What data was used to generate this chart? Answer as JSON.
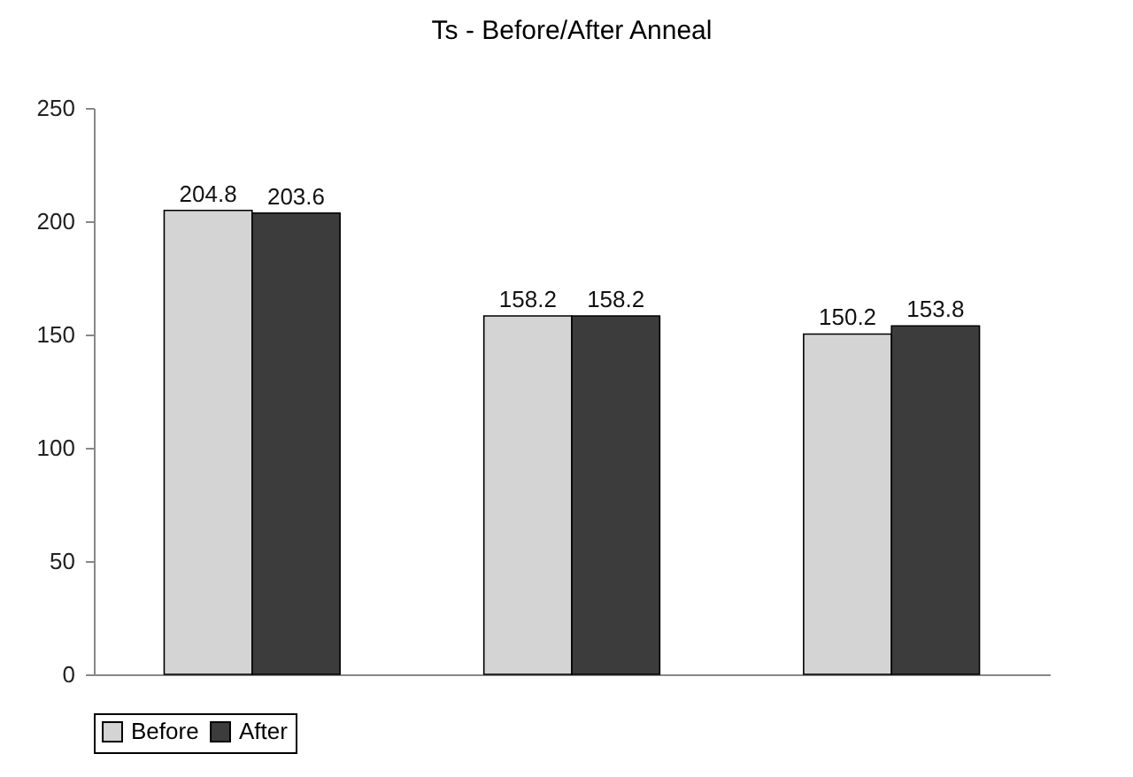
{
  "chart_data": {
    "type": "bar",
    "title": "Ts - Before/After Anneal",
    "categories": [
      null,
      null,
      null
    ],
    "series": [
      {
        "name": "Before",
        "color": "#d4d4d4",
        "values": [
          204.8,
          158.2,
          150.2
        ]
      },
      {
        "name": "After",
        "color": "#3c3c3c",
        "values": [
          203.6,
          158.2,
          153.8
        ]
      }
    ],
    "ylim": [
      0,
      250
    ],
    "yticks": [
      0,
      50,
      100,
      150,
      200,
      250
    ],
    "data_labels": true,
    "legend": "bottom",
    "tick_labels": "y",
    "grid": false
  }
}
